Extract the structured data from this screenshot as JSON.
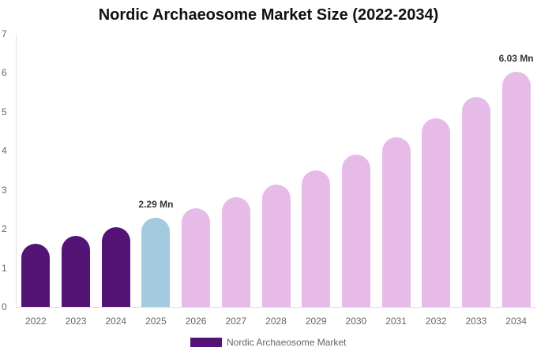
{
  "chart_data": {
    "type": "bar",
    "title": "Nordic Archaeosome Market Size (2022-2034)",
    "xlabel": "",
    "ylabel": "",
    "ylim": [
      0,
      7
    ],
    "yticks": [
      "0",
      "1",
      "2",
      "3",
      "4",
      "5",
      "6",
      "7"
    ],
    "grid": false,
    "categories": [
      "2022",
      "2023",
      "2024",
      "2025",
      "2026",
      "2027",
      "2028",
      "2029",
      "2030",
      "2031",
      "2032",
      "2033",
      "2034"
    ],
    "series": [
      {
        "name": "Nordic Archaeosome Market",
        "values": [
          1.62,
          1.82,
          2.04,
          2.29,
          2.53,
          2.81,
          3.14,
          3.5,
          3.91,
          4.36,
          4.84,
          5.38,
          6.03
        ]
      }
    ],
    "bar_colors": [
      "#541475",
      "#541475",
      "#541475",
      "#a3cadf",
      "#e6bbe8",
      "#e6bbe8",
      "#e6bbe8",
      "#e6bbe8",
      "#e6bbe8",
      "#e6bbe8",
      "#e6bbe8",
      "#e6bbe8",
      "#e6bbe8"
    ],
    "annotations": [
      {
        "category": "2025",
        "text": "2.29 Mn"
      },
      {
        "category": "2034",
        "text": "6.03 Mn"
      }
    ],
    "legend": {
      "position": "bottom",
      "label": "Nordic Archaeosome Market",
      "color": "#541475"
    }
  }
}
